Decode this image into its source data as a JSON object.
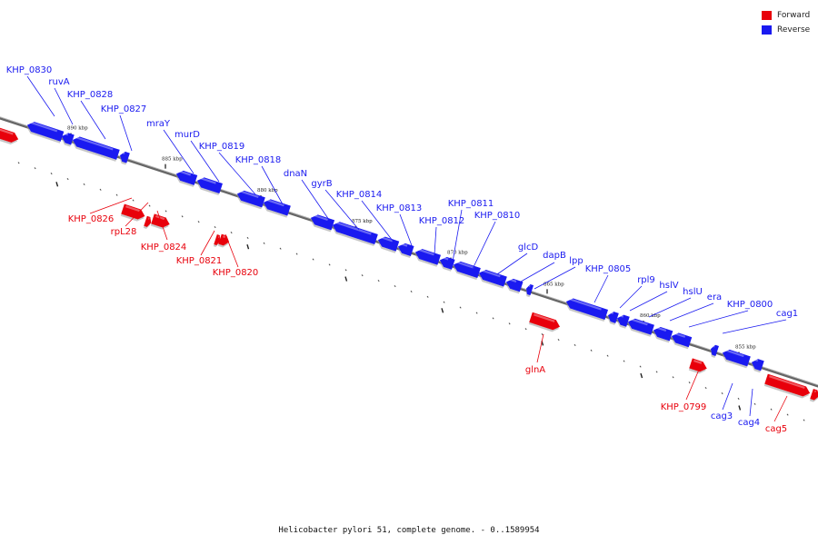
{
  "colors": {
    "forward": "#e8000b",
    "reverse": "#1a1af0",
    "axis": "#555555"
  },
  "legend": [
    {
      "label": "Forward",
      "strand": "forward"
    },
    {
      "label": "Reverse",
      "strand": "reverse"
    }
  ],
  "caption": "Helicobacter pylori 51, complete genome. - 0..1589954",
  "ticks": [
    "890 kbp",
    "885 kbp",
    "880 kbp",
    "875 kbp",
    "870 kbp",
    "865 kbp",
    "860 kbp",
    "855 kbp"
  ],
  "reverse_genes": [
    "KHP_0830",
    "ruvA",
    "KHP_0828",
    "KHP_0827",
    "mraY",
    "murD",
    "KHP_0819",
    "KHP_0818",
    "dnaN",
    "gyrB",
    "KHP_0814",
    "KHP_0813",
    "KHP_0812",
    "KHP_0811",
    "KHP_0810",
    "glcD",
    "dapB",
    "lpp",
    "KHP_0805",
    "rpl9",
    "hslV",
    "hslU",
    "era",
    "KHP_0800",
    "cag1",
    "cag3",
    "cag4"
  ],
  "forward_genes": [
    "KHP_0826",
    "rpL28",
    "KHP_0824",
    "KHP_0821",
    "KHP_0820",
    "glnA",
    "KHP_0799",
    "cag5"
  ]
}
